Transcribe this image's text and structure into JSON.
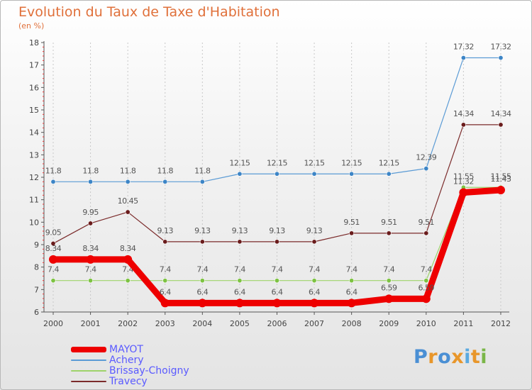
{
  "title": "Evolution du Taux de Taxe d'Habitation",
  "subtitle": "(en %)",
  "logo": {
    "text": "Proxiti",
    "letters": [
      {
        "ch": "P",
        "color": "#4a8fd4"
      },
      {
        "ch": "r",
        "color": "#e8962a"
      },
      {
        "ch": "o",
        "color": "#4a8fd4"
      },
      {
        "ch": "x",
        "color": "#e8962a"
      },
      {
        "ch": "i",
        "color": "#5aa9e0"
      },
      {
        "ch": "t",
        "color": "#e8962a"
      },
      {
        "ch": "i",
        "color": "#7ab648"
      }
    ]
  },
  "chart_data": {
    "type": "line",
    "title": "Evolution du Taux de Taxe d'Habitation",
    "subtitle": "(en %)",
    "categories": [
      "2000",
      "2001",
      "2002",
      "2003",
      "2004",
      "2005",
      "2006",
      "2007",
      "2008",
      "2009",
      "2010",
      "2011",
      "2012"
    ],
    "ylim": [
      6,
      18
    ],
    "yticks": [
      6,
      7,
      8,
      9,
      10,
      11,
      12,
      13,
      14,
      15,
      16,
      17,
      18
    ],
    "grid": "vertical-dashed",
    "legend_position": "bottom-left",
    "series": [
      {
        "name": "Achery",
        "color": "#5b9bd5",
        "marker": "#3d85c6",
        "width": 1.2,
        "values": [
          11.8,
          11.8,
          11.8,
          11.8,
          11.8,
          12.15,
          12.15,
          12.15,
          12.15,
          12.15,
          12.39,
          17.32,
          17.32
        ],
        "labels": [
          "11.8",
          "11.8",
          "11.8",
          "11.8",
          "11.8",
          "12.15",
          "12.15",
          "12.15",
          "12.15",
          "12.15",
          "12.39",
          "17.32",
          "17.32"
        ]
      },
      {
        "name": "Travecy",
        "color": "#7b2b2b",
        "marker": "#6a1c1c",
        "width": 1.2,
        "values": [
          9.05,
          9.95,
          10.45,
          9.13,
          9.13,
          9.13,
          9.13,
          9.13,
          9.51,
          9.51,
          9.51,
          14.34,
          14.34
        ],
        "labels": [
          "9.05",
          "9.95",
          "10.45",
          "9.13",
          "9.13",
          "9.13",
          "9.13",
          "9.13",
          "9.51",
          "9.51",
          "9.51",
          "14.34",
          "14.34"
        ]
      },
      {
        "name": "Brissay-Choigny",
        "color": "#9ed36a",
        "marker": "#7dc242",
        "width": 1.2,
        "values": [
          7.4,
          7.4,
          7.4,
          7.4,
          7.4,
          7.4,
          7.4,
          7.4,
          7.4,
          7.4,
          7.4,
          11.55,
          11.55
        ],
        "labels": [
          "7.4",
          "7.4",
          "7.4",
          "7.4",
          "7.4",
          "7.4",
          "7.4",
          "7.4",
          "7.4",
          "7.4",
          "7.4",
          "11.55",
          "11.55"
        ]
      },
      {
        "name": "MAYOT",
        "color": "#ee0000",
        "marker": "#ee0000",
        "width": 9,
        "values": [
          8.34,
          8.34,
          8.34,
          6.4,
          6.4,
          6.4,
          6.4,
          6.4,
          6.4,
          6.59,
          6.59,
          11.32,
          11.43
        ],
        "labels": [
          "8.34",
          "8.34",
          "8.34",
          "6.4",
          "6.4",
          "6.4",
          "6.4",
          "6.4",
          "6.4",
          "6.59",
          "6.59",
          "11.32",
          "11.43"
        ]
      }
    ],
    "legend_order": [
      "MAYOT",
      "Achery",
      "Brissay-Choigny",
      "Travecy"
    ]
  }
}
